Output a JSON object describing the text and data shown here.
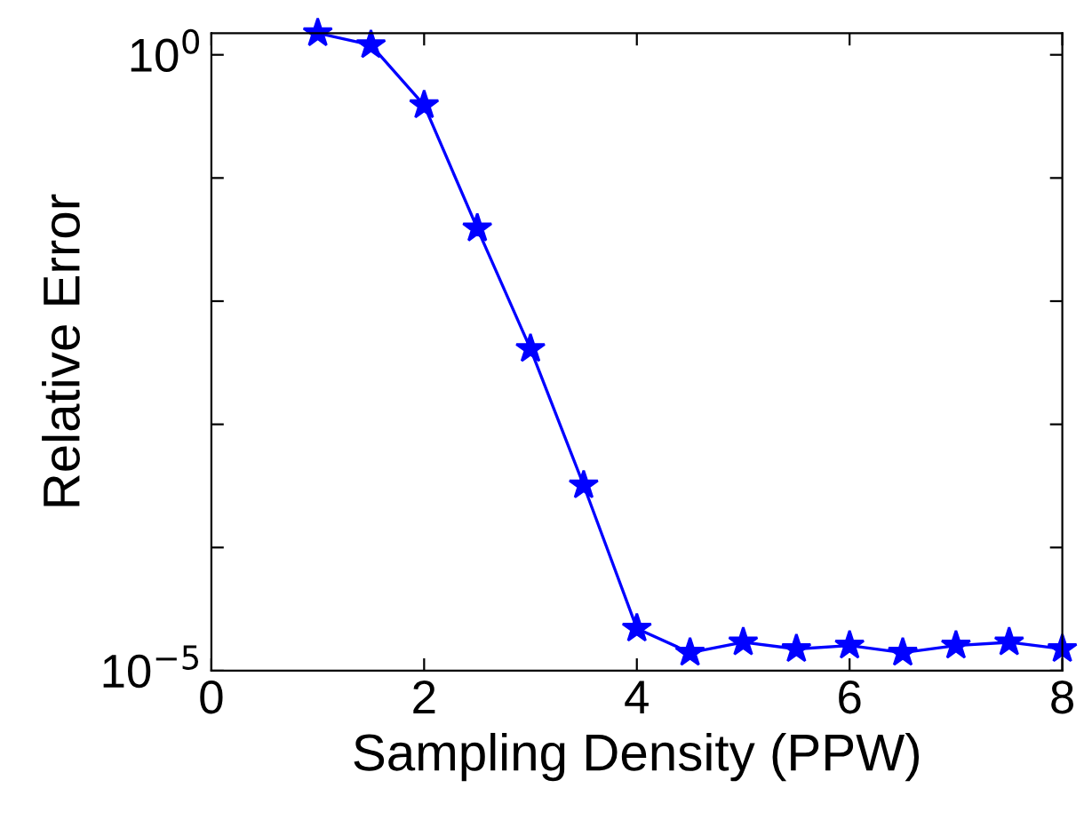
{
  "chart_data": {
    "type": "line",
    "xlabel": "Sampling Density (PPW)",
    "ylabel": "Relative Error",
    "x": [
      1,
      1.5,
      2,
      2.5,
      3,
      3.5,
      4,
      4.5,
      5,
      5.5,
      6,
      6.5,
      7,
      7.5,
      8
    ],
    "series": [
      {
        "color": "#0000ff",
        "values": [
          1.5,
          1.2,
          0.39,
          0.039,
          0.0041,
          0.00032,
          2.2e-05,
          1.4e-05,
          1.7e-05,
          1.5e-05,
          1.6e-05,
          1.4e-05,
          1.6e-05,
          1.7e-05,
          1.5e-05
        ]
      }
    ],
    "marker": "star",
    "line_style": "solid",
    "log": "y",
    "grid": false,
    "legend": false,
    "xlim": [
      0,
      8
    ],
    "xticks": [
      0,
      2,
      4,
      6,
      8
    ],
    "ylim": [
      1e-05,
      1.5
    ],
    "yticks": [
      {
        "value": 1e-05,
        "label": "10$^{−5}$"
      },
      {
        "value": 0.0001,
        "label": null
      },
      {
        "value": 0.001,
        "label": null
      },
      {
        "value": 0.01,
        "label": null
      },
      {
        "value": 0.1,
        "label": null
      },
      {
        "value": 1,
        "label": "10$^{0}$"
      }
    ]
  }
}
